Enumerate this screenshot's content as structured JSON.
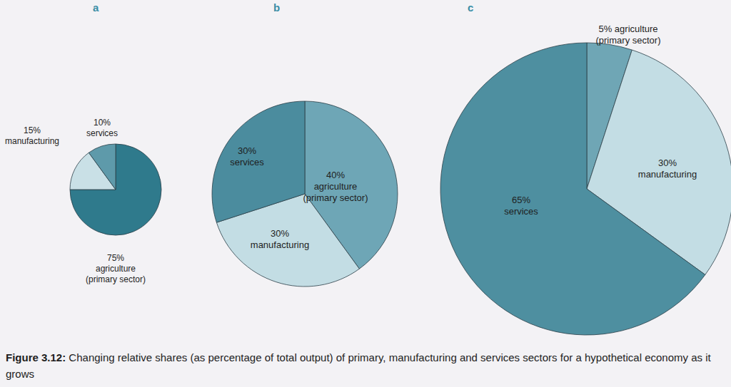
{
  "chart_data": [
    {
      "type": "pie",
      "title": "a",
      "categories": [
        "agriculture (primary sector)",
        "manufacturing",
        "services"
      ],
      "values": [
        75,
        15,
        10
      ],
      "value_labels": [
        "75%",
        "15%",
        "10%"
      ],
      "colors": [
        "#2f7a8c",
        "#c9e0e6",
        "#5e9aaa"
      ],
      "data_labels": true
    },
    {
      "type": "pie",
      "title": "b",
      "categories": [
        "agriculture (primary sector)",
        "manufacturing",
        "services"
      ],
      "values": [
        40,
        30,
        30
      ],
      "value_labels": [
        "40%",
        "30%",
        "30%"
      ],
      "colors": [
        "#6ea6b6",
        "#c3dde4",
        "#4b8c9e"
      ],
      "data_labels": true
    },
    {
      "type": "pie",
      "title": "c",
      "categories": [
        "agriculture (primary sector)",
        "manufacturing",
        "services"
      ],
      "values": [
        5,
        30,
        65
      ],
      "value_labels": [
        "5%",
        "30%",
        "65%"
      ],
      "colors": [
        "#6fa6b5",
        "#c3dde4",
        "#4e8fa0"
      ],
      "data_labels": true
    }
  ],
  "caption_label": "Figure 3.12:",
  "caption": "Changing relative shares (as percentage of total output) of primary, manufacturing and services sectors for a hypothetical economy as it grows"
}
